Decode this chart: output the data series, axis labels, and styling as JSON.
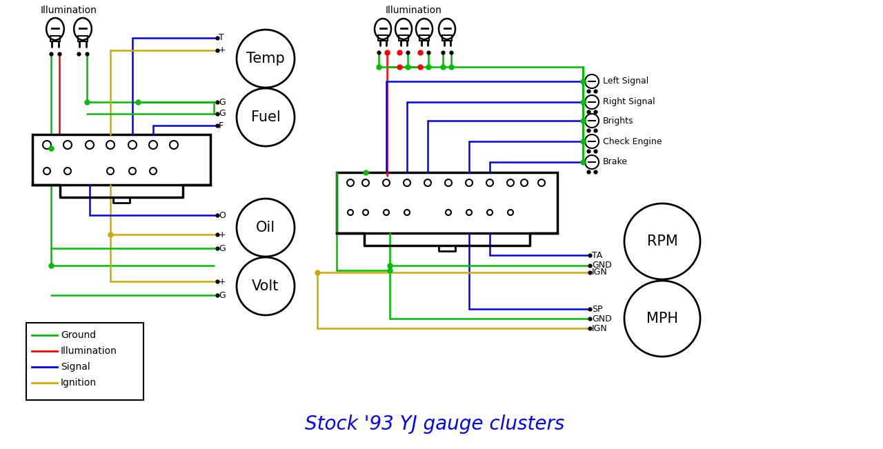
{
  "title": "Stock '93 YJ gauge clusters",
  "title_color": "#0000FF",
  "title_fontsize": 20,
  "bg_color": "#FFFFFF",
  "colors": {
    "ground": "#00BB00",
    "illumination": "#FF0000",
    "signal": "#0000EE",
    "ignition": "#CCAA00"
  },
  "legend_items": [
    {
      "label": "Ground",
      "color": "#00BB00"
    },
    {
      "label": "Illumination",
      "color": "#FF0000"
    },
    {
      "label": "Signal",
      "color": "#0000EE"
    },
    {
      "label": "Ignition",
      "color": "#CCAA00"
    }
  ],
  "figsize": [
    12.8,
    6.51
  ],
  "dpi": 100
}
